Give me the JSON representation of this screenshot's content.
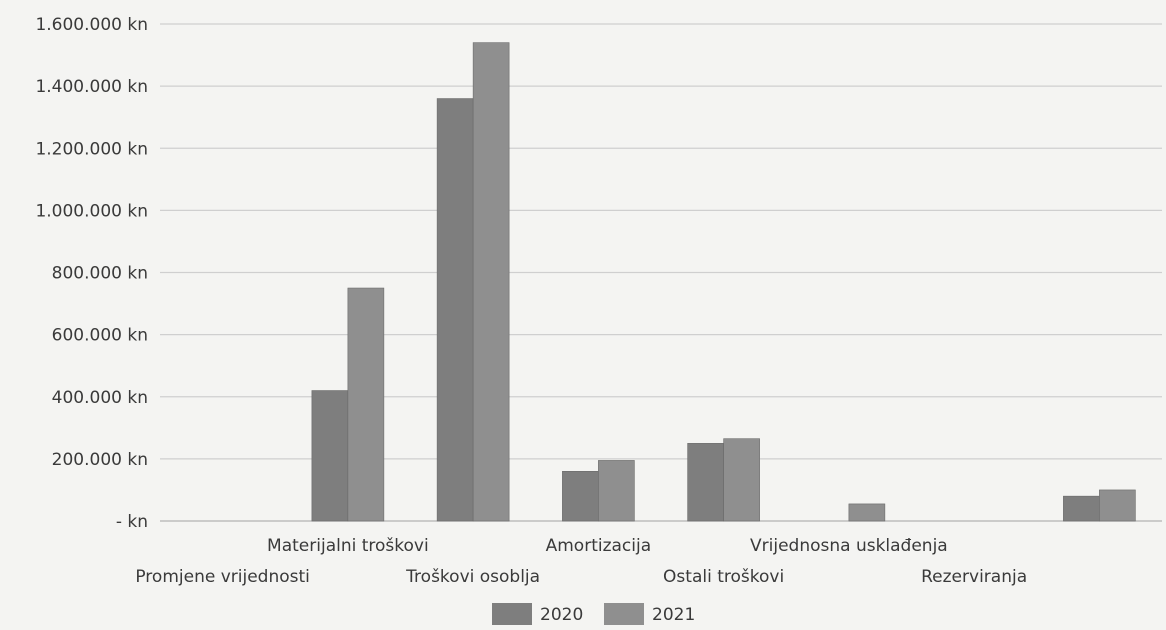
{
  "chart_data": {
    "type": "bar",
    "title": "",
    "xlabel": "",
    "ylabel": "",
    "ylim": [
      0,
      1600000
    ],
    "y_ticks": [
      {
        "value": 0,
        "label": "- kn"
      },
      {
        "value": 200000,
        "label": "200.000 kn"
      },
      {
        "value": 400000,
        "label": "400.000 kn"
      },
      {
        "value": 600000,
        "label": "600.000 kn"
      },
      {
        "value": 800000,
        "label": "800.000 kn"
      },
      {
        "value": 1000000,
        "label": "1.000.000 kn"
      },
      {
        "value": 1200000,
        "label": "1.200.000 kn"
      },
      {
        "value": 1400000,
        "label": "1.400.000 kn"
      },
      {
        "value": 1600000,
        "label": "1.600.000 kn"
      }
    ],
    "categories": [
      "Promjene vrijednosti",
      "Materijalni troškovi",
      "Troškovi osoblja",
      "Amortizacija",
      "Ostali troškovi",
      "Vrijednosna usklađenja",
      "Rezerviranja",
      ""
    ],
    "series": [
      {
        "name": "2020",
        "color": "#7e7e7e",
        "values": [
          0,
          420000,
          1360000,
          160000,
          250000,
          0,
          0,
          80000
        ]
      },
      {
        "name": "2021",
        "color": "#8f8f8f",
        "values": [
          0,
          750000,
          1540000,
          195000,
          265000,
          55000,
          0,
          100000
        ]
      }
    ],
    "grid": true,
    "legend_position": "bottom"
  }
}
